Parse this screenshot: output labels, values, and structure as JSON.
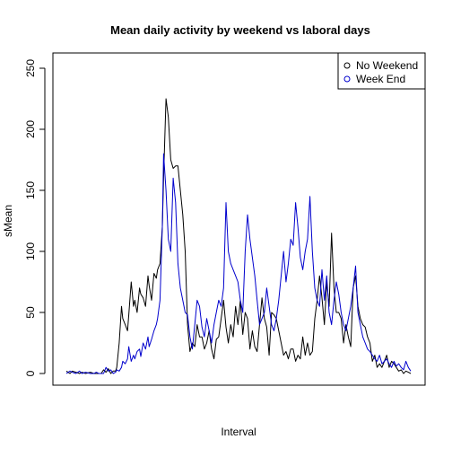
{
  "chart_data": {
    "type": "line",
    "title": "Mean daily activity by weekend vs laboral days",
    "xlabel": "Interval",
    "ylabel": "sMean",
    "ylim": [
      0,
      250
    ],
    "yticks": [
      0,
      50,
      100,
      150,
      200,
      250
    ],
    "xticks_visible": false,
    "grid": false,
    "legend_position": "top-right",
    "series": [
      {
        "name": "No Weekend",
        "color": "#000000",
        "x": [
          1,
          4,
          6,
          9,
          12,
          14,
          17,
          21,
          24,
          26,
          28,
          30,
          32,
          34,
          36,
          38,
          40,
          42,
          43,
          45,
          47,
          48,
          50,
          52,
          53,
          55,
          57,
          58,
          60,
          62,
          63,
          65,
          67,
          69,
          70,
          72,
          74,
          76,
          77,
          79,
          81,
          82,
          84,
          86,
          88,
          90,
          92,
          94,
          96,
          98,
          100,
          102,
          104,
          106,
          108,
          110,
          112,
          114,
          116,
          118,
          120,
          122,
          124,
          126,
          128,
          130,
          132,
          134,
          136,
          138,
          140,
          142,
          144,
          146,
          148,
          150,
          152,
          154,
          156,
          158,
          160,
          162,
          164,
          166,
          168,
          170,
          172,
          174,
          176,
          178,
          180,
          182,
          184,
          186,
          188,
          190,
          192,
          194,
          196,
          198,
          200,
          202,
          204,
          206,
          208,
          210,
          212,
          214,
          216,
          218,
          220,
          222,
          224,
          226,
          228,
          230,
          232,
          234,
          236,
          238,
          240,
          242,
          244,
          246,
          248,
          250,
          252,
          254,
          256,
          258,
          260,
          262,
          264,
          266,
          268,
          270,
          272,
          274,
          276,
          278,
          280,
          282,
          284,
          286,
          288
        ],
        "y": [
          2,
          0,
          2,
          1,
          0,
          1,
          0,
          1,
          0,
          0,
          0,
          0,
          3,
          1,
          4,
          0,
          2,
          2,
          5,
          25,
          55,
          45,
          40,
          35,
          48,
          75,
          55,
          60,
          50,
          70,
          65,
          62,
          55,
          80,
          72,
          60,
          82,
          78,
          85,
          90,
          120,
          160,
          225,
          210,
          175,
          168,
          170,
          170,
          150,
          130,
          100,
          40,
          18,
          25,
          22,
          40,
          30,
          30,
          20,
          25,
          35,
          20,
          12,
          28,
          30,
          45,
          60,
          38,
          25,
          40,
          30,
          55,
          40,
          60,
          32,
          50,
          45,
          20,
          35,
          22,
          18,
          40,
          62,
          45,
          38,
          15,
          50,
          48,
          45,
          35,
          25,
          15,
          18,
          12,
          20,
          20,
          10,
          15,
          12,
          30,
          15,
          25,
          15,
          18,
          45,
          60,
          80,
          62,
          40,
          75,
          55,
          115,
          70,
          50,
          50,
          45,
          25,
          40,
          30,
          22,
          70,
          80,
          55,
          45,
          40,
          38,
          30,
          25,
          10,
          15,
          5,
          8,
          5,
          10,
          15,
          5,
          10,
          8,
          5,
          2,
          3,
          0,
          2,
          1,
          0
        ]
      },
      {
        "name": "Week End",
        "color": "#0000cd",
        "x": [
          1,
          4,
          6,
          9,
          12,
          14,
          17,
          21,
          24,
          26,
          28,
          30,
          32,
          34,
          36,
          38,
          40,
          42,
          43,
          45,
          47,
          48,
          50,
          52,
          53,
          55,
          57,
          58,
          60,
          62,
          63,
          65,
          67,
          69,
          70,
          72,
          74,
          76,
          77,
          79,
          81,
          82,
          84,
          86,
          88,
          90,
          92,
          94,
          96,
          98,
          100,
          102,
          104,
          106,
          108,
          110,
          112,
          114,
          116,
          118,
          120,
          122,
          124,
          126,
          128,
          130,
          132,
          134,
          136,
          138,
          140,
          142,
          144,
          146,
          148,
          150,
          152,
          154,
          156,
          158,
          160,
          162,
          164,
          166,
          168,
          170,
          172,
          174,
          176,
          178,
          180,
          182,
          184,
          186,
          188,
          190,
          192,
          194,
          196,
          198,
          200,
          202,
          204,
          206,
          208,
          210,
          212,
          214,
          216,
          218,
          220,
          222,
          224,
          226,
          228,
          230,
          232,
          234,
          236,
          238,
          240,
          242,
          244,
          246,
          248,
          250,
          252,
          254,
          256,
          258,
          260,
          262,
          264,
          266,
          268,
          270,
          272,
          274,
          276,
          278,
          280,
          282,
          284,
          286,
          288
        ],
        "y": [
          0,
          2,
          1,
          0,
          2,
          0,
          1,
          0,
          0,
          1,
          0,
          0,
          0,
          5,
          2,
          3,
          0,
          1,
          3,
          2,
          5,
          10,
          8,
          12,
          22,
          10,
          15,
          12,
          18,
          20,
          14,
          25,
          20,
          30,
          22,
          28,
          35,
          40,
          45,
          60,
          120,
          180,
          150,
          110,
          100,
          160,
          140,
          90,
          70,
          60,
          50,
          48,
          30,
          20,
          40,
          60,
          55,
          38,
          30,
          45,
          35,
          25,
          40,
          50,
          60,
          55,
          70,
          140,
          100,
          90,
          85,
          80,
          75,
          60,
          50,
          100,
          130,
          110,
          95,
          80,
          60,
          40,
          45,
          50,
          70,
          55,
          40,
          35,
          45,
          60,
          80,
          100,
          75,
          90,
          110,
          105,
          140,
          120,
          95,
          85,
          100,
          110,
          145,
          100,
          70,
          60,
          55,
          85,
          60,
          80,
          50,
          40,
          60,
          75,
          65,
          50,
          40,
          35,
          45,
          55,
          70,
          88,
          50,
          40,
          30,
          25,
          20,
          18,
          15,
          12,
          10,
          15,
          8,
          10,
          12,
          8,
          5,
          10,
          6,
          8,
          5,
          3,
          10,
          5,
          2
        ]
      }
    ]
  }
}
